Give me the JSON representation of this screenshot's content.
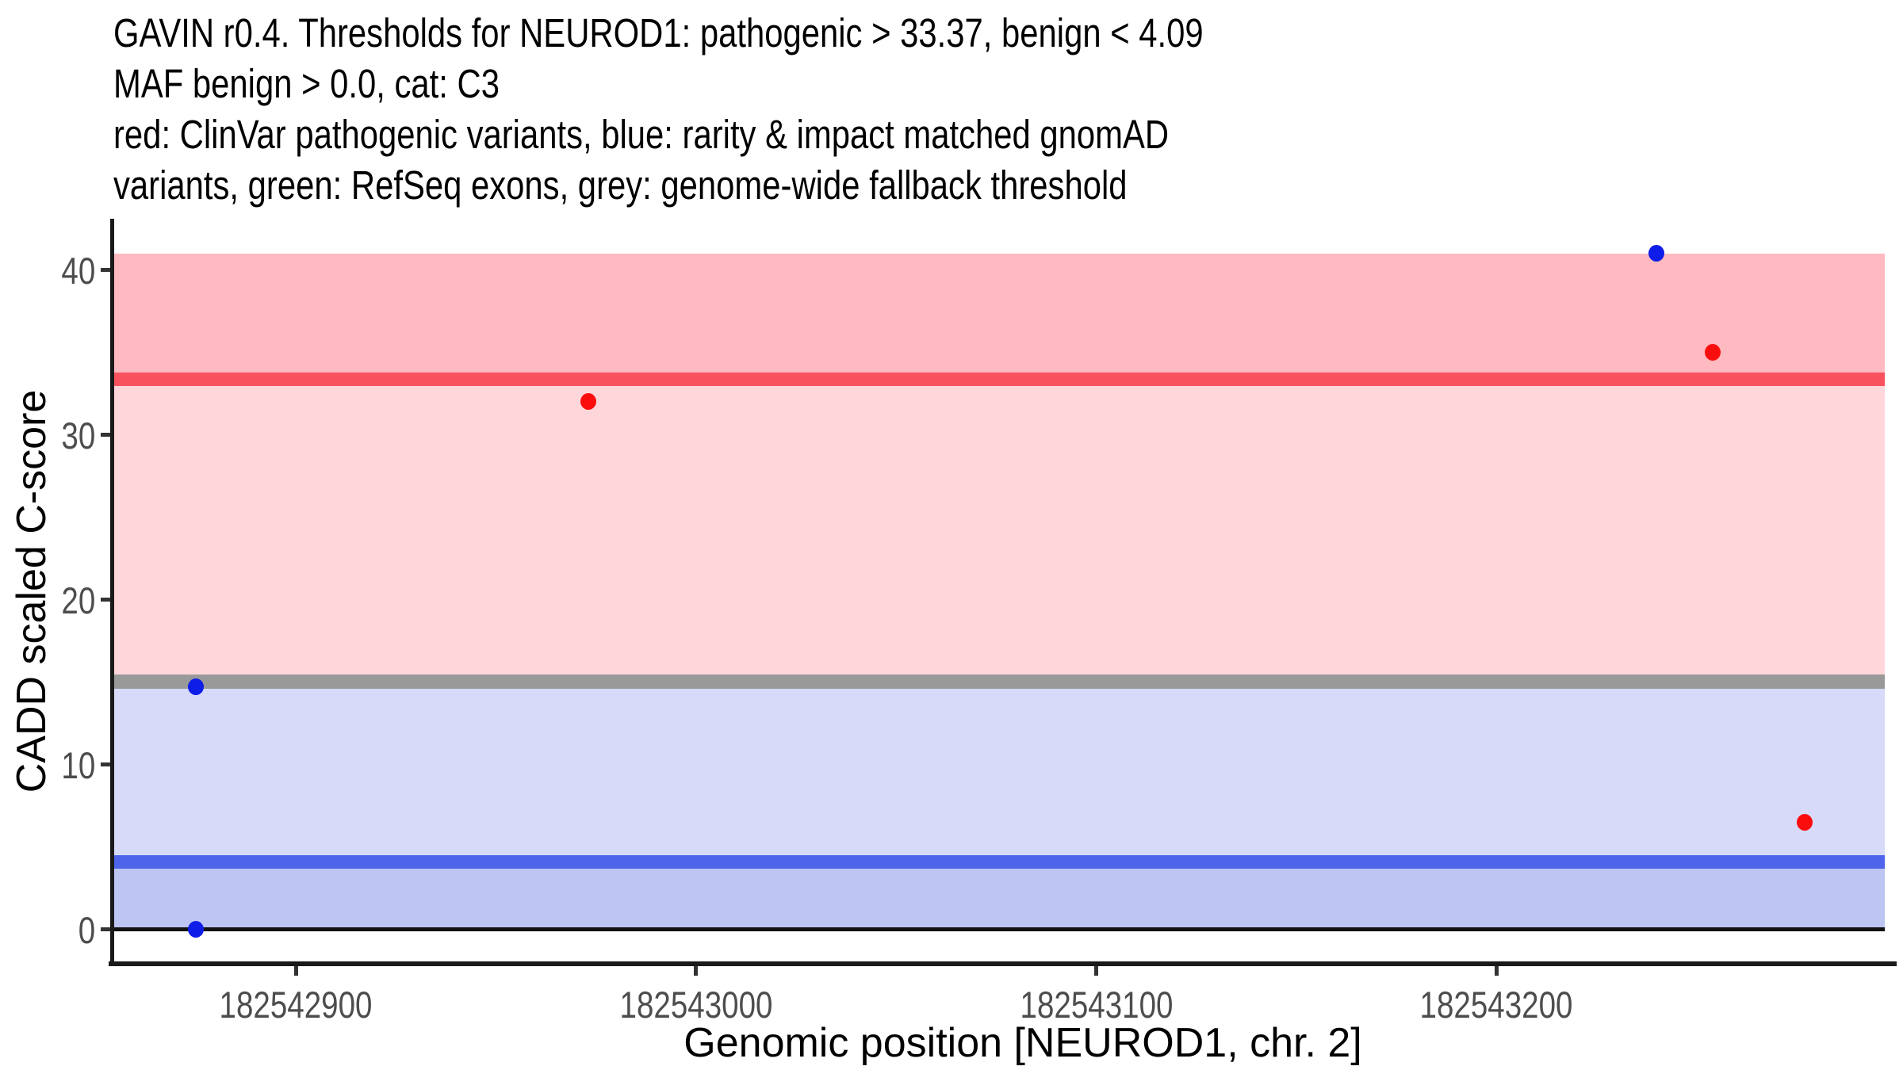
{
  "figure": {
    "title_lines": [
      "GAVIN r0.4. Thresholds for NEUROD1: pathogenic > 33.37, benign < 4.09",
      "MAF benign > 0.0, cat: C3",
      "red: ClinVar pathogenic variants, blue: rarity & impact matched gnomAD",
      "variants, green: RefSeq exons, grey: genome-wide fallback threshold"
    ]
  },
  "chart_data": {
    "type": "scatter",
    "title": "GAVIN r0.4. Thresholds for NEUROD1: pathogenic > 33.37, benign < 4.09",
    "subtitle": "MAF benign > 0.0, cat: C3",
    "legend_note": "red: ClinVar pathogenic variants, blue: rarity & impact matched gnomAD variants, green: RefSeq exons, grey: genome-wide fallback threshold",
    "xlabel": "Genomic position [NEUROD1, chr. 2]",
    "ylabel": "CADD scaled C-score",
    "gene": "NEUROD1",
    "chromosome": "2",
    "gavin_release": "r0.4",
    "category": "C3",
    "maf_benign": 0.0,
    "thresholds": {
      "pathogenic": 33.37,
      "benign": 4.09,
      "genome_wide_fallback": 15.0
    },
    "x_domain": [
      182542854,
      182543297
    ],
    "y_domain": [
      -2.05,
      43.05
    ],
    "x_ticks": [
      182542900,
      182543000,
      182543100,
      182543200
    ],
    "y_ticks": [
      0,
      10,
      20,
      30,
      40
    ],
    "grid": false,
    "legend_position": "none",
    "bands": [
      {
        "name": "pathogenic-zone",
        "from": 33.37,
        "to": 41.0,
        "color": "#FFB9C0"
      },
      {
        "name": "uncertain-upper-zone",
        "from": 15.0,
        "to": 33.37,
        "color": "#FFD7DB"
      },
      {
        "name": "uncertain-lower-zone",
        "from": 4.09,
        "to": 15.0,
        "color": "#D7DAF8"
      },
      {
        "name": "benign-zone",
        "from": 0.0,
        "to": 4.09,
        "color": "#BDC5F3"
      }
    ],
    "lines": [
      {
        "name": "pathogenic-threshold-line",
        "y": 33.37,
        "color": "#F8525E",
        "thickness_px": 17
      },
      {
        "name": "genome-wide-fallback-line",
        "y": 15.0,
        "color": "#999999",
        "thickness_px": 18
      },
      {
        "name": "benign-threshold-line",
        "y": 4.09,
        "color": "#4D64EB",
        "thickness_px": 17
      },
      {
        "name": "zero-baseline",
        "y": 0.0,
        "color": "#111111",
        "thickness_px": 5
      }
    ],
    "series": [
      {
        "name": "ClinVar pathogenic variants",
        "color": "#F90D0D"
      },
      {
        "name": "rarity & impact matched gnomAD variants",
        "color": "#0F1DE8"
      }
    ],
    "points": [
      {
        "x": 182542875,
        "y": 14.7,
        "series": "gnomAD",
        "color": "#0F1DE8"
      },
      {
        "x": 182542875,
        "y": 0.0,
        "series": "gnomAD",
        "color": "#0F1DE8"
      },
      {
        "x": 182542973,
        "y": 32.0,
        "series": "ClinVar",
        "color": "#F90D0D"
      },
      {
        "x": 182543240,
        "y": 41.0,
        "series": "gnomAD",
        "color": "#0F1DE8"
      },
      {
        "x": 182543254,
        "y": 35.0,
        "series": "ClinVar",
        "color": "#F90D0D"
      },
      {
        "x": 182543277,
        "y": 6.5,
        "series": "ClinVar",
        "color": "#F90D0D"
      }
    ],
    "colors": {
      "axis_line": "#1a1a1a",
      "tick_mark": "#333333",
      "tick_label": "#4d4d4d",
      "title_text": "#000000"
    }
  }
}
